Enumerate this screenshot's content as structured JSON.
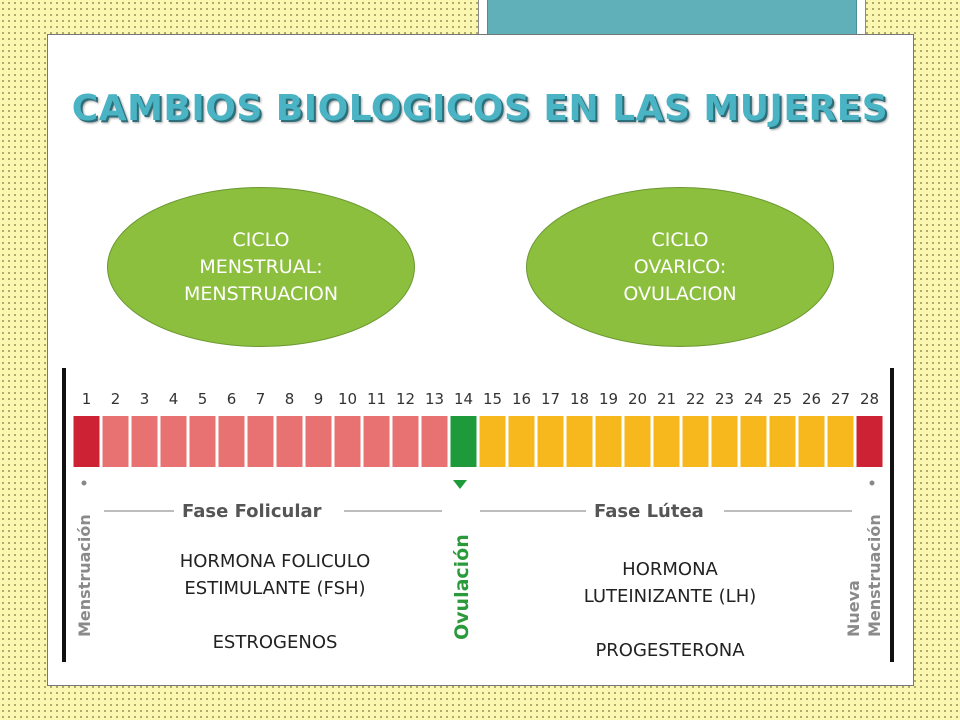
{
  "title": "CAMBIOS BIOLOGICOS EN LAS MUJERES",
  "ellipses": [
    {
      "lines": [
        "CICLO",
        "MENSTRUAL:",
        "MENSTRUACION"
      ]
    },
    {
      "lines": [
        "CICLO",
        "OVARICO:",
        "OVULACION"
      ]
    }
  ],
  "cycle": {
    "days": [
      "1",
      "2",
      "3",
      "4",
      "5",
      "6",
      "7",
      "8",
      "9",
      "10",
      "11",
      "12",
      "13",
      "14",
      "15",
      "16",
      "17",
      "18",
      "19",
      "20",
      "21",
      "22",
      "23",
      "24",
      "25",
      "26",
      "27",
      "28"
    ],
    "day_colors": {
      "menstruation": "#cc2233",
      "follicular": "#e87272",
      "ovulation": "#1f9a3a",
      "luteal": "#f6b81c"
    },
    "phases": {
      "follicular": "Fase Folicular",
      "luteal": "Fase Lútea"
    },
    "vertical_labels": {
      "menstruation": "Menstruación",
      "ovulation": "Ovulación",
      "new_menstruation_1": "Nueva",
      "new_menstruation_2": "Menstruación"
    }
  },
  "hormones_left": [
    "HORMONA FOLICULO",
    "ESTIMULANTE (FSH)",
    "ESTROGENOS"
  ],
  "hormones_right": [
    "HORMONA",
    "LUTEINIZANTE  (LH)",
    "PROGESTERONA"
  ]
}
